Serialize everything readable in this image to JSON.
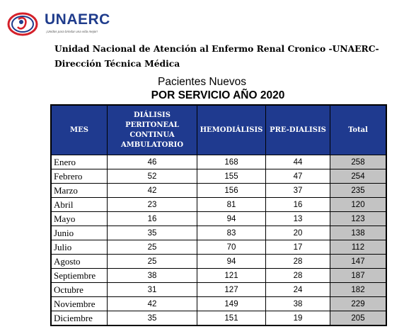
{
  "logo": {
    "name": "UNAERC",
    "tagline": "¡Unidos para brindar una vida mejor!"
  },
  "header": {
    "org_line1": "Unidad Nacional de Atención al Enfermo Renal Cronico -UNAERC-",
    "org_line2": "Dirección Técnica Médica"
  },
  "title": "Pacientes Nuevos",
  "subtitle": "POR SERVICIO AÑO 2020",
  "columns": [
    "MES",
    "DIÁLISIS PERITONEAL CONTINUA AMBULATORIO",
    "HEMODIÁLISIS",
    "PRE-DIALISIS",
    "Total"
  ],
  "rows": [
    {
      "mes": "Enero",
      "dpca": "46",
      "hemo": "168",
      "pre": "44",
      "total": "258"
    },
    {
      "mes": "Febrero",
      "dpca": "52",
      "hemo": "155",
      "pre": "47",
      "total": "254"
    },
    {
      "mes": "Marzo",
      "dpca": "42",
      "hemo": "156",
      "pre": "37",
      "total": "235"
    },
    {
      "mes": "Abril",
      "dpca": "23",
      "hemo": "81",
      "pre": "16",
      "total": "120"
    },
    {
      "mes": "Mayo",
      "dpca": "16",
      "hemo": "94",
      "pre": "13",
      "total": "123"
    },
    {
      "mes": "Junio",
      "dpca": "35",
      "hemo": "83",
      "pre": "20",
      "total": "138"
    },
    {
      "mes": "Julio",
      "dpca": "25",
      "hemo": "70",
      "pre": "17",
      "total": "112"
    },
    {
      "mes": "Agosto",
      "dpca": "25",
      "hemo": "94",
      "pre": "28",
      "total": "147"
    },
    {
      "mes": "Septiembre",
      "dpca": "38",
      "hemo": "121",
      "pre": "28",
      "total": "187"
    },
    {
      "mes": "Octubre",
      "dpca": "31",
      "hemo": "127",
      "pre": "24",
      "total": "182"
    },
    {
      "mes": "Noviembre",
      "dpca": "42",
      "hemo": "149",
      "pre": "38",
      "total": "229"
    },
    {
      "mes": "Diciembre",
      "dpca": "35",
      "hemo": "151",
      "pre": "19",
      "total": "205"
    }
  ],
  "colors": {
    "header_bg": "#1f3a8f",
    "total_bg": "#c3c3c3",
    "logo_red": "#d4202a",
    "logo_blue": "#1f3c8c"
  }
}
